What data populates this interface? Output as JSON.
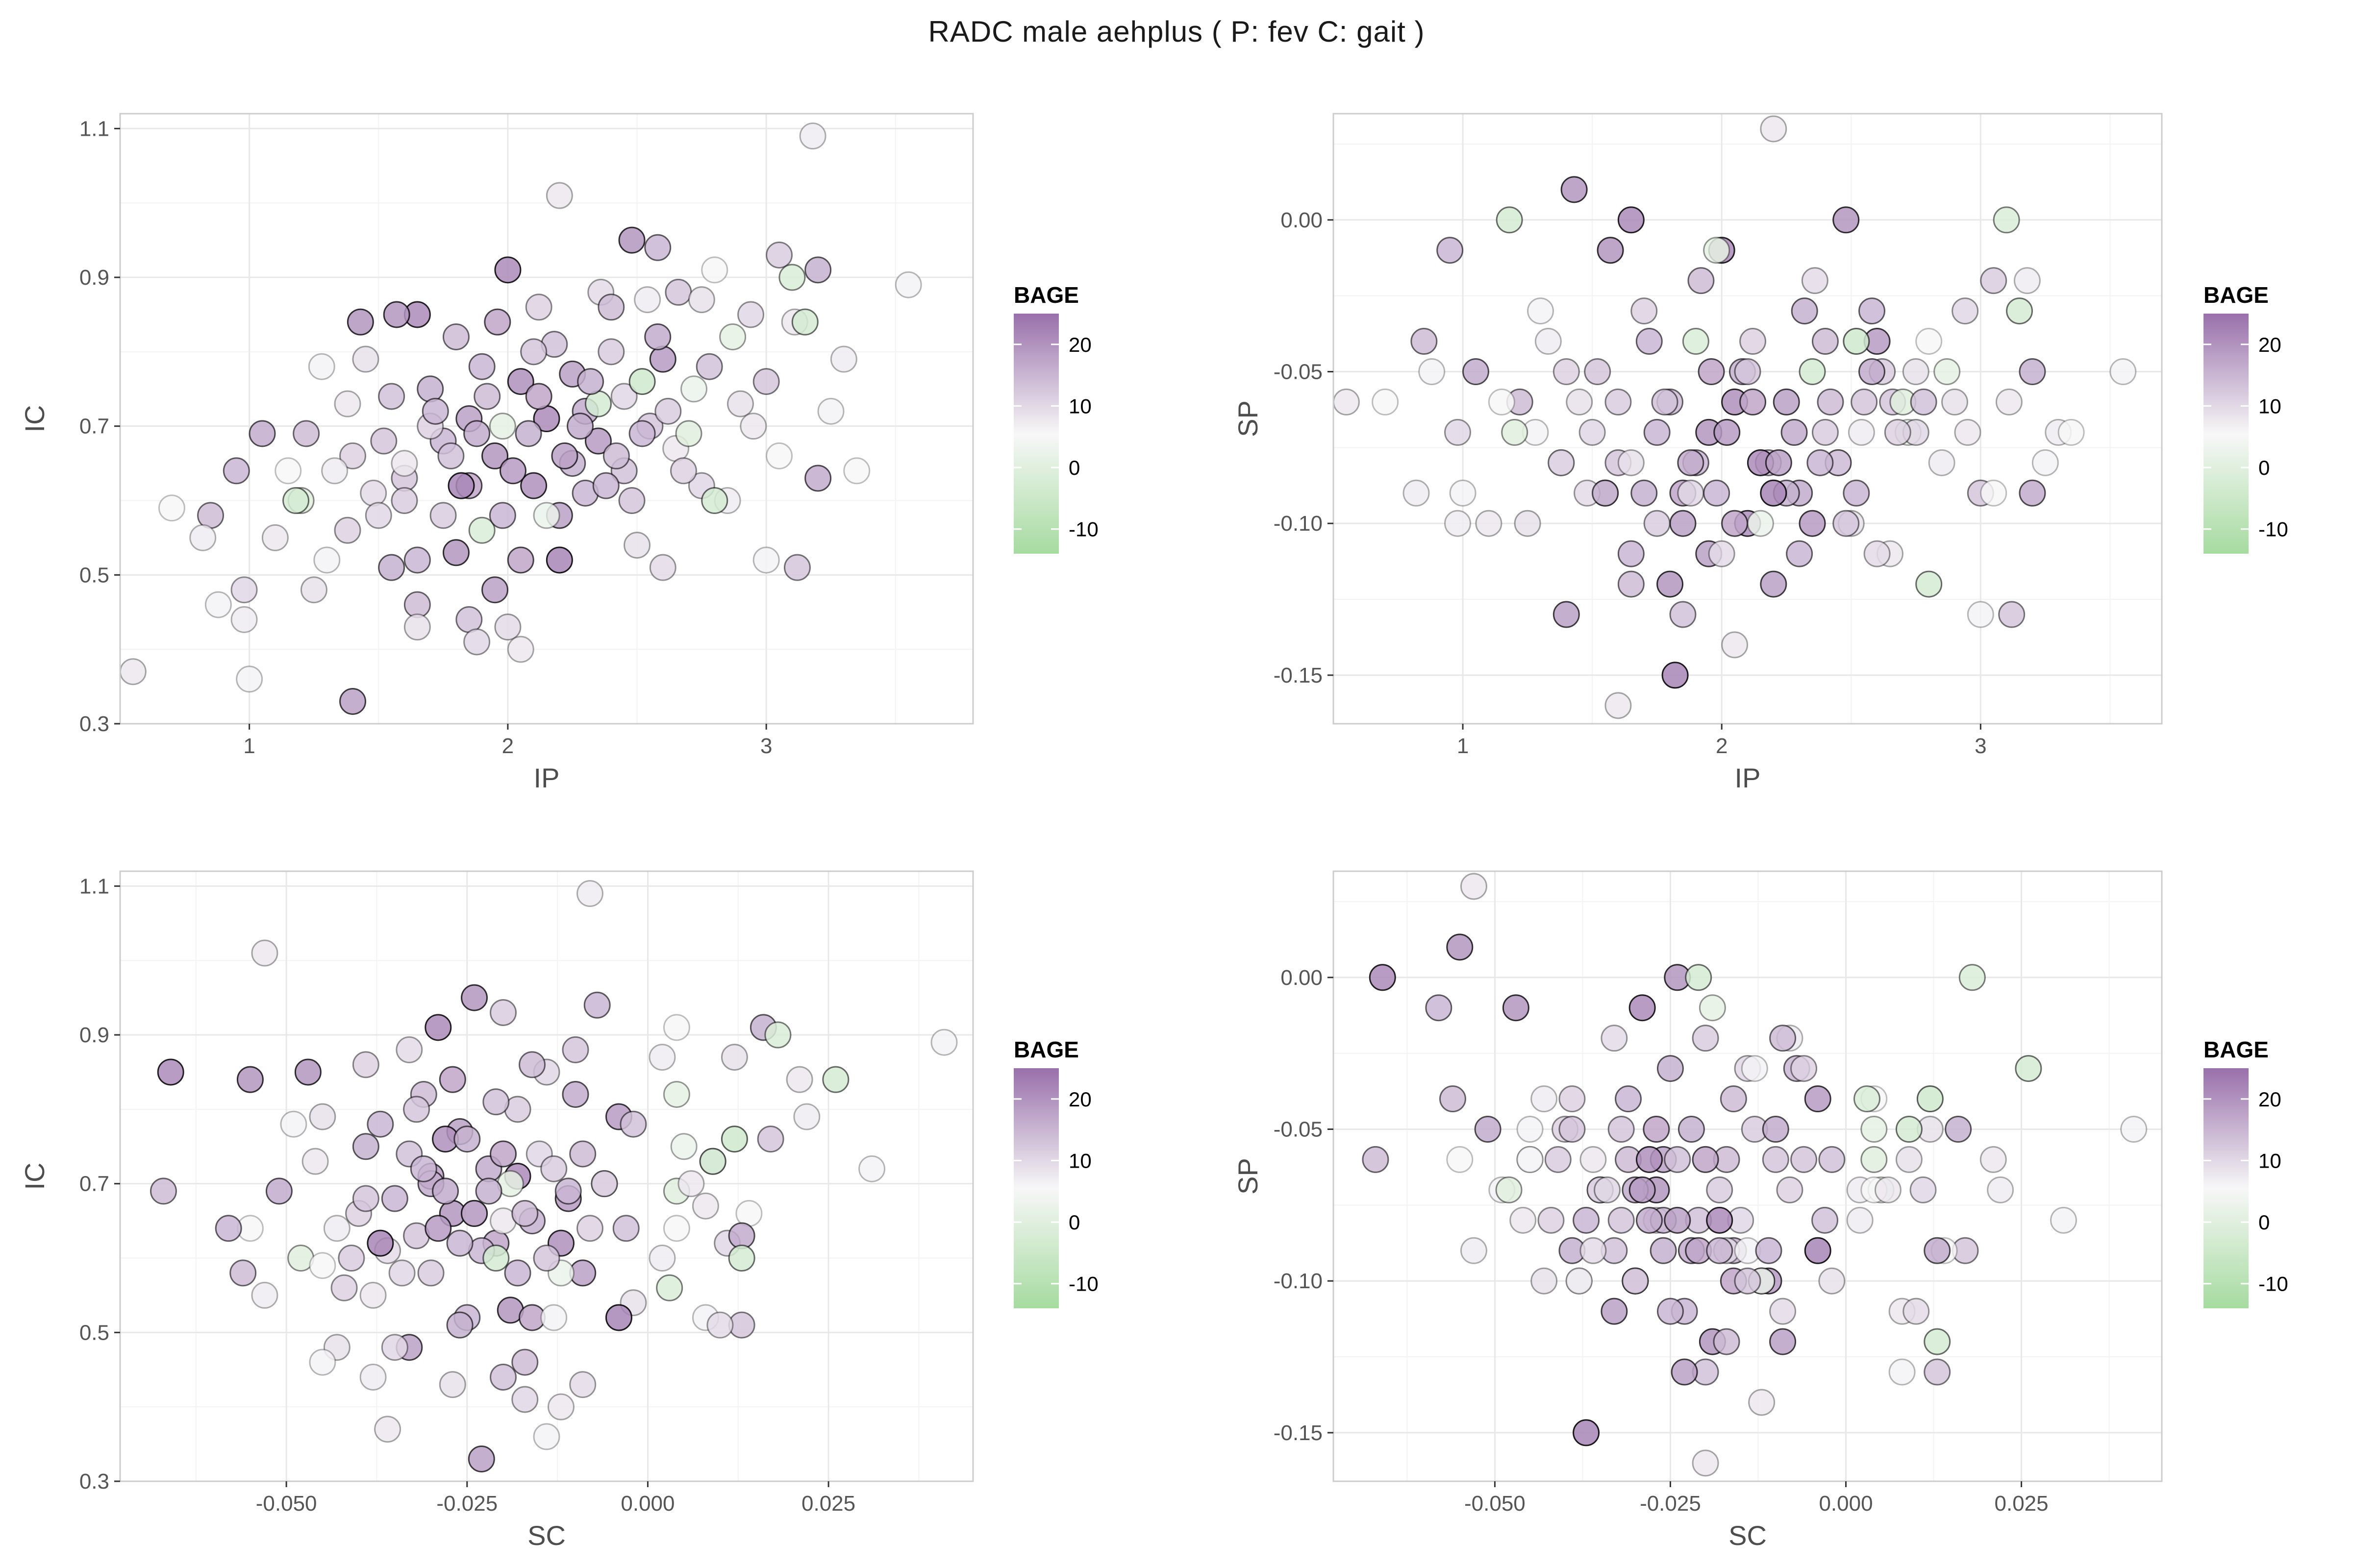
{
  "title": "RADC  male  aehplus ( P: fev  C: gait )",
  "legend": {
    "title": "BAGE",
    "ticks": [
      20,
      10,
      0,
      -10
    ],
    "range": [
      -14,
      25
    ],
    "colors": {
      "low": "#a6dba0",
      "mid": "#f7f7f7",
      "high": "#9970ab"
    }
  },
  "chart_data": [
    {
      "type": "scatter",
      "id": "ip-ic",
      "xlabel": "IP",
      "ylabel": "IC",
      "xlim": [
        0.5,
        3.8
      ],
      "ylim": [
        0.3,
        1.12
      ],
      "xticks": [
        1,
        2,
        3
      ],
      "yticks": [
        0.3,
        0.5,
        0.7,
        0.9,
        1.1
      ],
      "x_tick_labels": [
        "1",
        "2",
        "3"
      ],
      "y_tick_labels": [
        "0.3",
        "0.5",
        "0.7",
        "0.9",
        "1.1"
      ],
      "grid": true,
      "x_key": "ip",
      "y_key": "ic"
    },
    {
      "type": "scatter",
      "id": "ip-sp",
      "xlabel": "IP",
      "ylabel": "SP",
      "xlim": [
        0.5,
        3.7
      ],
      "ylim": [
        -0.166,
        0.035
      ],
      "xticks": [
        1,
        2,
        3
      ],
      "yticks": [
        -0.15,
        -0.1,
        -0.05,
        0.0
      ],
      "x_tick_labels": [
        "1",
        "2",
        "3"
      ],
      "y_tick_labels": [
        "-0.15",
        "-0.10",
        "-0.05",
        "0.00"
      ],
      "grid": true,
      "x_key": "ip",
      "y_key": "sp"
    },
    {
      "type": "scatter",
      "id": "sc-ic",
      "xlabel": "SC",
      "ylabel": "IC",
      "xlim": [
        -0.073,
        0.045
      ],
      "ylim": [
        0.3,
        1.12
      ],
      "xticks": [
        -0.05,
        -0.025,
        0.0,
        0.025
      ],
      "yticks": [
        0.3,
        0.5,
        0.7,
        0.9,
        1.1
      ],
      "x_tick_labels": [
        "-0.050",
        "-0.025",
        "0.000",
        "0.025"
      ],
      "y_tick_labels": [
        "0.3",
        "0.5",
        "0.7",
        "0.9",
        "1.1"
      ],
      "grid": true,
      "x_key": "sc",
      "y_key": "ic"
    },
    {
      "type": "scatter",
      "id": "sc-sp",
      "xlabel": "SC",
      "ylabel": "SP",
      "xlim": [
        -0.073,
        0.045
      ],
      "ylim": [
        -0.166,
        0.035
      ],
      "xticks": [
        -0.05,
        -0.025,
        0.0,
        0.025
      ],
      "yticks": [
        -0.15,
        -0.1,
        -0.05,
        0.0
      ],
      "x_tick_labels": [
        "-0.050",
        "-0.025",
        "0.000",
        "0.025"
      ],
      "y_tick_labels": [
        "-0.15",
        "-0.10",
        "-0.05",
        "0.00"
      ],
      "grid": true,
      "x_key": "sc",
      "y_key": "sp"
    }
  ],
  "points": [
    {
      "ip": 3.18,
      "ic": 1.09,
      "sp": -0.02,
      "sc": -0.008,
      "bage": 2
    },
    {
      "ip": 2.2,
      "ic": 1.01,
      "sp": 0.03,
      "sc": -0.053,
      "bage": 3
    },
    {
      "ip": 2.48,
      "ic": 0.95,
      "sp": 0.0,
      "sc": -0.024,
      "bage": 18
    },
    {
      "ip": 2.58,
      "ic": 0.94,
      "sp": -0.03,
      "sc": -0.007,
      "bage": 12
    },
    {
      "ip": 3.05,
      "ic": 0.93,
      "sp": -0.02,
      "sc": -0.02,
      "bage": 8
    },
    {
      "ip": 3.2,
      "ic": 0.91,
      "sp": -0.05,
      "sc": 0.016,
      "bage": 13
    },
    {
      "ip": 3.55,
      "ic": 0.89,
      "sp": -0.05,
      "sc": 0.041,
      "bage": 1
    },
    {
      "ip": 2.0,
      "ic": 0.91,
      "sp": -0.01,
      "sc": -0.029,
      "bage": 20
    },
    {
      "ip": 2.8,
      "ic": 0.91,
      "sp": -0.04,
      "sc": 0.004,
      "bage": 0
    },
    {
      "ip": 2.36,
      "ic": 0.88,
      "sp": -0.02,
      "sc": -0.033,
      "bage": 5
    },
    {
      "ip": 2.66,
      "ic": 0.88,
      "sp": -0.06,
      "sc": -0.01,
      "bage": 9
    },
    {
      "ip": 2.75,
      "ic": 0.87,
      "sp": -0.05,
      "sc": 0.012,
      "bage": 4
    },
    {
      "ip": 2.12,
      "ic": 0.86,
      "sp": -0.04,
      "sc": -0.039,
      "bage": 7
    },
    {
      "ip": 2.54,
      "ic": 0.87,
      "sp": -0.07,
      "sc": 0.002,
      "bage": 2
    },
    {
      "ip": 1.65,
      "ic": 0.85,
      "sp": 0.0,
      "sc": -0.066,
      "bage": 20
    },
    {
      "ip": 1.57,
      "ic": 0.85,
      "sp": -0.01,
      "sc": -0.047,
      "bage": 18
    },
    {
      "ip": 1.43,
      "ic": 0.84,
      "sp": 0.01,
      "sc": -0.055,
      "bage": 18
    },
    {
      "ip": 2.94,
      "ic": 0.85,
      "sp": -0.03,
      "sc": -0.014,
      "bage": 6
    },
    {
      "ip": 3.11,
      "ic": 0.84,
      "sp": -0.06,
      "sc": 0.021,
      "bage": 3
    },
    {
      "ip": 1.96,
      "ic": 0.84,
      "sp": -0.05,
      "sc": -0.027,
      "bage": 15
    },
    {
      "ip": 1.8,
      "ic": 0.82,
      "sp": -0.06,
      "sc": -0.031,
      "bage": 11
    },
    {
      "ip": 2.4,
      "ic": 0.8,
      "sp": -0.07,
      "sc": -0.018,
      "bage": 8
    },
    {
      "ip": 2.18,
      "ic": 0.81,
      "sp": -0.08,
      "sc": -0.021,
      "bage": 10
    },
    {
      "ip": 2.87,
      "ic": 0.82,
      "sp": -0.05,
      "sc": 0.004,
      "bage": -3
    },
    {
      "ip": 1.28,
      "ic": 0.78,
      "sp": -0.07,
      "sc": -0.049,
      "bage": 1
    },
    {
      "ip": 1.45,
      "ic": 0.79,
      "sp": -0.06,
      "sc": -0.045,
      "bage": 4
    },
    {
      "ip": 1.9,
      "ic": 0.78,
      "sp": -0.08,
      "sc": -0.037,
      "bage": 12
    },
    {
      "ip": 2.25,
      "ic": 0.77,
      "sp": -0.06,
      "sc": -0.026,
      "bage": 16
    },
    {
      "ip": 2.6,
      "ic": 0.79,
      "sp": -0.04,
      "sc": -0.004,
      "bage": 17
    },
    {
      "ip": 3.3,
      "ic": 0.79,
      "sp": -0.07,
      "sc": 0.022,
      "bage": 2
    },
    {
      "ip": 3.0,
      "ic": 0.76,
      "sp": -0.09,
      "sc": 0.017,
      "bage": 9
    },
    {
      "ip": 1.7,
      "ic": 0.75,
      "sp": -0.09,
      "sc": -0.039,
      "bage": 13
    },
    {
      "ip": 2.05,
      "ic": 0.76,
      "sp": -0.06,
      "sc": -0.028,
      "bage": 19
    },
    {
      "ip": 2.45,
      "ic": 0.74,
      "sp": -0.08,
      "sc": -0.015,
      "bage": 6
    },
    {
      "ip": 2.72,
      "ic": 0.75,
      "sp": -0.07,
      "sc": 0.005,
      "bage": -2
    },
    {
      "ip": 1.38,
      "ic": 0.73,
      "sp": -0.08,
      "sc": -0.046,
      "bage": 3
    },
    {
      "ip": 1.55,
      "ic": 0.74,
      "sp": -0.09,
      "sc": -0.033,
      "bage": 10
    },
    {
      "ip": 2.3,
      "ic": 0.72,
      "sp": -0.09,
      "sc": -0.022,
      "bage": 14
    },
    {
      "ip": 2.9,
      "ic": 0.73,
      "sp": -0.06,
      "sc": 0.009,
      "bage": 4
    },
    {
      "ip": 3.25,
      "ic": 0.72,
      "sp": -0.08,
      "sc": 0.031,
      "bage": 1
    },
    {
      "ip": 1.85,
      "ic": 0.71,
      "sp": -0.1,
      "sc": -0.03,
      "bage": 16
    },
    {
      "ip": 2.15,
      "ic": 0.71,
      "sp": -0.08,
      "sc": -0.018,
      "bage": 20
    },
    {
      "ip": 2.55,
      "ic": 0.7,
      "sp": -0.06,
      "sc": -0.006,
      "bage": 9
    },
    {
      "ip": 1.22,
      "ic": 0.69,
      "sp": -0.06,
      "sc": -0.067,
      "bage": 11
    },
    {
      "ip": 1.05,
      "ic": 0.69,
      "sp": -0.05,
      "sc": -0.051,
      "bage": 14
    },
    {
      "ip": 1.75,
      "ic": 0.68,
      "sp": -0.07,
      "sc": -0.035,
      "bage": 12
    },
    {
      "ip": 2.35,
      "ic": 0.68,
      "sp": -0.1,
      "sc": -0.011,
      "bage": 17
    },
    {
      "ip": 2.65,
      "ic": 0.67,
      "sp": -0.11,
      "sc": 0.008,
      "bage": 3
    },
    {
      "ip": 3.05,
      "ic": 0.66,
      "sp": -0.09,
      "sc": 0.014,
      "bage": 0
    },
    {
      "ip": 1.4,
      "ic": 0.66,
      "sp": -0.05,
      "sc": -0.04,
      "bage": 7
    },
    {
      "ip": 1.95,
      "ic": 0.66,
      "sp": -0.07,
      "sc": -0.027,
      "bage": 18
    },
    {
      "ip": 2.25,
      "ic": 0.65,
      "sp": -0.09,
      "sc": -0.016,
      "bage": 13
    },
    {
      "ip": 2.45,
      "ic": 0.64,
      "sp": -0.08,
      "sc": -0.003,
      "bage": 10
    },
    {
      "ip": 1.33,
      "ic": 0.64,
      "sp": -0.04,
      "sc": -0.043,
      "bage": 2
    },
    {
      "ip": 1.15,
      "ic": 0.64,
      "sp": -0.06,
      "sc": -0.055,
      "bage": 0
    },
    {
      "ip": 0.95,
      "ic": 0.64,
      "sp": -0.01,
      "sc": -0.058,
      "bage": 12
    },
    {
      "ip": 1.6,
      "ic": 0.63,
      "sp": -0.08,
      "sc": -0.032,
      "bage": 9
    },
    {
      "ip": 1.85,
      "ic": 0.62,
      "sp": -0.09,
      "sc": -0.021,
      "bage": 15
    },
    {
      "ip": 2.1,
      "ic": 0.62,
      "sp": -0.1,
      "sc": -0.012,
      "bage": 19
    },
    {
      "ip": 2.75,
      "ic": 0.62,
      "sp": -0.07,
      "sc": 0.011,
      "bage": 6
    },
    {
      "ip": 3.2,
      "ic": 0.63,
      "sp": -0.09,
      "sc": 0.013,
      "bage": 14
    },
    {
      "ip": 3.35,
      "ic": 0.64,
      "sp": -0.07,
      "sc": 0.004,
      "bage": 0
    },
    {
      "ip": 1.48,
      "ic": 0.61,
      "sp": -0.09,
      "sc": -0.036,
      "bage": 5
    },
    {
      "ip": 2.3,
      "ic": 0.61,
      "sp": -0.11,
      "sc": -0.023,
      "bage": 12
    },
    {
      "ip": 2.85,
      "ic": 0.6,
      "sp": -0.08,
      "sc": 0.002,
      "bage": 2
    },
    {
      "ip": 1.2,
      "ic": 0.6,
      "sp": -0.07,
      "sc": -0.048,
      "bage": -4
    },
    {
      "ip": 0.7,
      "ic": 0.59,
      "sp": -0.06,
      "sc": -0.045,
      "bage": 0
    },
    {
      "ip": 1.75,
      "ic": 0.58,
      "sp": -0.1,
      "sc": -0.03,
      "bage": 8
    },
    {
      "ip": 2.2,
      "ic": 0.58,
      "sp": -0.12,
      "sc": -0.009,
      "bage": 16
    },
    {
      "ip": 0.85,
      "ic": 0.58,
      "sp": -0.04,
      "sc": -0.056,
      "bage": 11
    },
    {
      "ip": 1.38,
      "ic": 0.56,
      "sp": -0.08,
      "sc": -0.042,
      "bage": 7
    },
    {
      "ip": 0.82,
      "ic": 0.55,
      "sp": -0.09,
      "sc": -0.053,
      "bage": 2
    },
    {
      "ip": 1.1,
      "ic": 0.55,
      "sp": -0.1,
      "sc": -0.038,
      "bage": 3
    },
    {
      "ip": 2.5,
      "ic": 0.54,
      "sp": -0.1,
      "sc": -0.002,
      "bage": 4
    },
    {
      "ip": 1.65,
      "ic": 0.52,
      "sp": -0.11,
      "sc": -0.025,
      "bage": 12
    },
    {
      "ip": 1.8,
      "ic": 0.53,
      "sp": -0.12,
      "sc": -0.019,
      "bage": 18
    },
    {
      "ip": 2.05,
      "ic": 0.52,
      "sp": -0.1,
      "sc": -0.016,
      "bage": 15
    },
    {
      "ip": 2.2,
      "ic": 0.52,
      "sp": -0.09,
      "sc": -0.004,
      "bage": 21
    },
    {
      "ip": 3.0,
      "ic": 0.52,
      "sp": -0.13,
      "sc": 0.008,
      "bage": 1
    },
    {
      "ip": 3.12,
      "ic": 0.51,
      "sp": -0.13,
      "sc": 0.013,
      "bage": 9
    },
    {
      "ip": 2.6,
      "ic": 0.51,
      "sp": -0.11,
      "sc": 0.01,
      "bage": 5
    },
    {
      "ip": 1.55,
      "ic": 0.51,
      "sp": -0.09,
      "sc": -0.026,
      "bage": 13
    },
    {
      "ip": 1.95,
      "ic": 0.48,
      "sp": -0.11,
      "sc": -0.033,
      "bage": 16
    },
    {
      "ip": 1.25,
      "ic": 0.48,
      "sp": -0.1,
      "sc": -0.043,
      "bage": 4
    },
    {
      "ip": 0.98,
      "ic": 0.48,
      "sp": -0.07,
      "sc": -0.035,
      "bage": 6
    },
    {
      "ip": 1.65,
      "ic": 0.46,
      "sp": -0.12,
      "sc": -0.017,
      "bage": 11
    },
    {
      "ip": 0.88,
      "ic": 0.46,
      "sp": -0.05,
      "sc": -0.045,
      "bage": 1
    },
    {
      "ip": 1.85,
      "ic": 0.44,
      "sp": -0.13,
      "sc": -0.02,
      "bage": 10
    },
    {
      "ip": 0.98,
      "ic": 0.44,
      "sp": -0.1,
      "sc": -0.038,
      "bage": 2
    },
    {
      "ip": 2.0,
      "ic": 0.43,
      "sp": -0.11,
      "sc": -0.009,
      "bage": 5
    },
    {
      "ip": 1.65,
      "ic": 0.43,
      "sp": -0.08,
      "sc": -0.027,
      "bage": 4
    },
    {
      "ip": 2.05,
      "ic": 0.4,
      "sp": -0.14,
      "sc": -0.012,
      "bage": 3
    },
    {
      "ip": 1.88,
      "ic": 0.41,
      "sp": -0.09,
      "sc": -0.017,
      "bage": 6
    },
    {
      "ip": 0.55,
      "ic": 0.37,
      "sp": -0.06,
      "sc": -0.036,
      "bage": 3
    },
    {
      "ip": 1.0,
      "ic": 0.36,
      "sp": -0.09,
      "sc": -0.014,
      "bage": 1
    },
    {
      "ip": 1.4,
      "ic": 0.33,
      "sp": -0.13,
      "sc": -0.023,
      "bage": 16
    },
    {
      "ip": 1.82,
      "ic": 0.62,
      "sp": -0.15,
      "sc": -0.037,
      "bage": 21
    },
    {
      "ip": 1.6,
      "ic": 0.65,
      "sp": -0.16,
      "sc": -0.02,
      "bage": 3
    },
    {
      "ip": 1.18,
      "ic": 0.6,
      "sp": 0.0,
      "sc": -0.021,
      "bage": -6
    },
    {
      "ip": 1.98,
      "ic": 0.7,
      "sp": -0.01,
      "sc": -0.019,
      "bage": -3
    },
    {
      "ip": 1.9,
      "ic": 0.56,
      "sp": -0.04,
      "sc": 0.003,
      "bage": -5
    },
    {
      "ip": 2.35,
      "ic": 0.73,
      "sp": -0.05,
      "sc": 0.009,
      "bage": -6
    },
    {
      "ip": 2.52,
      "ic": 0.76,
      "sp": -0.04,
      "sc": 0.012,
      "bage": -7
    },
    {
      "ip": 2.7,
      "ic": 0.69,
      "sp": -0.06,
      "sc": 0.004,
      "bage": -4
    },
    {
      "ip": 3.15,
      "ic": 0.84,
      "sp": -0.03,
      "sc": 0.026,
      "bage": -6
    },
    {
      "ip": 3.1,
      "ic": 0.9,
      "sp": 0.0,
      "sc": 0.018,
      "bage": -5
    },
    {
      "ip": 2.15,
      "ic": 0.58,
      "sp": -0.1,
      "sc": -0.012,
      "bage": -2
    },
    {
      "ip": 2.8,
      "ic": 0.6,
      "sp": -0.12,
      "sc": 0.013,
      "bage": -6
    },
    {
      "ip": 1.3,
      "ic": 0.52,
      "sp": -0.03,
      "sc": -0.013,
      "bage": 1
    },
    {
      "ip": 1.7,
      "ic": 0.7,
      "sp": -0.03,
      "sc": -0.006,
      "bage": 7
    },
    {
      "ip": 1.92,
      "ic": 0.74,
      "sp": -0.02,
      "sc": -0.009,
      "bage": 11
    },
    {
      "ip": 2.08,
      "ic": 0.69,
      "sp": -0.05,
      "sc": -0.022,
      "bage": 13
    },
    {
      "ip": 2.42,
      "ic": 0.66,
      "sp": -0.06,
      "sc": -0.017,
      "bage": 11
    },
    {
      "ip": 2.62,
      "ic": 0.72,
      "sp": -0.05,
      "sc": -0.013,
      "bage": 8
    },
    {
      "ip": 2.28,
      "ic": 0.7,
      "sp": -0.07,
      "sc": -0.03,
      "bage": 14
    },
    {
      "ip": 1.78,
      "ic": 0.66,
      "sp": -0.06,
      "sc": -0.024,
      "bage": 10
    },
    {
      "ip": 2.02,
      "ic": 0.64,
      "sp": -0.07,
      "sc": -0.029,
      "bage": 17
    },
    {
      "ip": 2.38,
      "ic": 0.62,
      "sp": -0.08,
      "sc": -0.026,
      "bage": 12
    },
    {
      "ip": 2.68,
      "ic": 0.64,
      "sp": -0.07,
      "sc": -0.008,
      "bage": 7
    },
    {
      "ip": 1.52,
      "ic": 0.68,
      "sp": -0.05,
      "sc": -0.039,
      "bage": 9
    },
    {
      "ip": 1.88,
      "ic": 0.69,
      "sp": -0.08,
      "sc": -0.028,
      "bage": 14
    },
    {
      "ip": 2.12,
      "ic": 0.74,
      "sp": -0.06,
      "sc": -0.02,
      "bage": 15
    },
    {
      "ip": 2.52,
      "ic": 0.69,
      "sp": -0.09,
      "sc": -0.011,
      "bage": 12
    },
    {
      "ip": 2.22,
      "ic": 0.66,
      "sp": -0.08,
      "sc": -0.024,
      "bage": 16
    },
    {
      "ip": 1.72,
      "ic": 0.72,
      "sp": -0.04,
      "sc": -0.031,
      "bage": 12
    },
    {
      "ip": 2.95,
      "ic": 0.7,
      "sp": -0.07,
      "sc": 0.006,
      "bage": 3
    },
    {
      "ip": 2.48,
      "ic": 0.6,
      "sp": -0.1,
      "sc": -0.014,
      "bage": 9
    },
    {
      "ip": 1.5,
      "ic": 0.58,
      "sp": -0.07,
      "sc": -0.034,
      "bage": 6
    },
    {
      "ip": 2.78,
      "ic": 0.78,
      "sp": -0.06,
      "sc": -0.002,
      "bage": 10
    },
    {
      "ip": 2.32,
      "ic": 0.76,
      "sp": -0.03,
      "sc": -0.025,
      "bage": 13
    },
    {
      "ip": 1.6,
      "ic": 0.6,
      "sp": -0.06,
      "sc": -0.041,
      "bage": 8
    },
    {
      "ip": 2.58,
      "ic": 0.82,
      "sp": -0.05,
      "sc": -0.01,
      "bage": 14
    },
    {
      "ip": 2.4,
      "ic": 0.86,
      "sp": -0.04,
      "sc": -0.016,
      "bage": 11
    },
    {
      "ip": 2.1,
      "ic": 0.8,
      "sp": -0.05,
      "sc": -0.032,
      "bage": 9
    },
    {
      "ip": 1.98,
      "ic": 0.58,
      "sp": -0.09,
      "sc": -0.018,
      "bage": 12
    }
  ]
}
